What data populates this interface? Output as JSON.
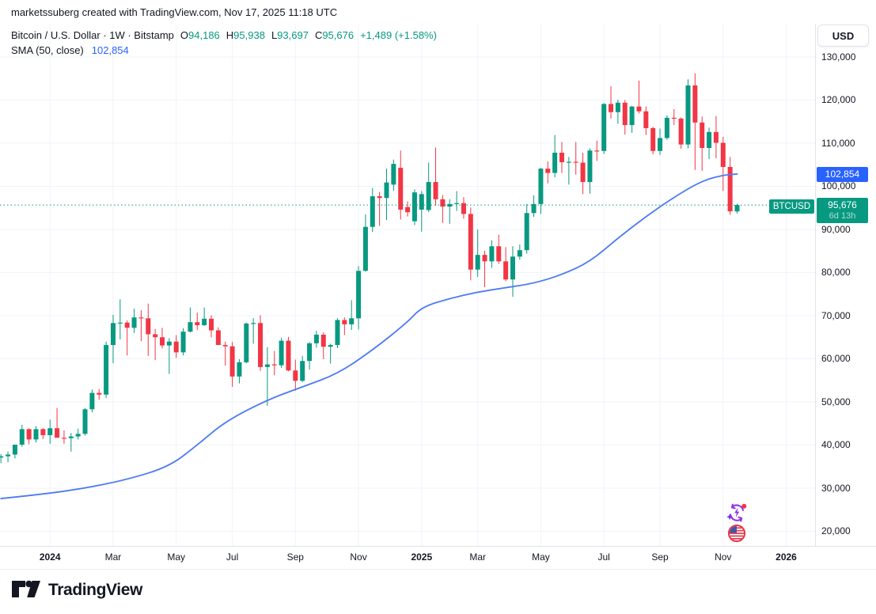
{
  "attribution": "marketssuberg created with TradingView.com, Nov 17, 2025 11:18 UTC",
  "legend": {
    "symbol_text": "Bitcoin / U.S. Dollar · 1W · Bitstamp",
    "o_label": "O",
    "o_value": "94,186",
    "h_label": "H",
    "h_value": "95,938",
    "l_label": "L",
    "l_value": "93,697",
    "c_label": "C",
    "c_value": "95,676",
    "change_text": "+1,489 (+1.58%)",
    "sma_label": "SMA (50, close)",
    "sma_value": "102,854"
  },
  "price_scale": {
    "currency_button": "USD",
    "sma_badge_text": "102,854",
    "price_badge_value": "95,676",
    "price_badge_countdown": "6d 13h",
    "symbol_badge_text": "BTCUSD"
  },
  "footer": {
    "logo_text": "TradingView"
  },
  "markers": {
    "items": [
      "economic-events-icon",
      "us-flag-event-icon"
    ]
  },
  "colors": {
    "up": "#089981",
    "down": "#f23645",
    "sma_line": "#4c7af2",
    "sma_value_text": "#2962ff",
    "badge_blue": "#2962ff",
    "badge_teal": "#089981",
    "grid": "#f0f3fa",
    "axis_border": "#e0e3eb",
    "text": "#131722",
    "current_price_line": "#089981"
  },
  "chart_data": {
    "type": "candlestick",
    "title": "Bitcoin / U.S. Dollar, 1W, Bitstamp",
    "ylabel": "USD",
    "ylim": [
      15000,
      133000
    ],
    "grid": true,
    "current_price": 95676,
    "sma_last": 102854,
    "y_ticks": [
      {
        "value": 130000,
        "label": "130,000"
      },
      {
        "value": 120000,
        "label": "120,000"
      },
      {
        "value": 110000,
        "label": "110,000"
      },
      {
        "value": 100000,
        "label": "100,000"
      },
      {
        "value": 90000,
        "label": "90,000"
      },
      {
        "value": 80000,
        "label": "80,000"
      },
      {
        "value": 70000,
        "label": "70,000"
      },
      {
        "value": 60000,
        "label": "60,000"
      },
      {
        "value": 50000,
        "label": "50,000"
      },
      {
        "value": 40000,
        "label": "40,000"
      },
      {
        "value": 30000,
        "label": "30,000"
      },
      {
        "value": 20000,
        "label": "20,000"
      }
    ],
    "x_ticks": [
      {
        "week": 7,
        "label": "2024",
        "bold": true
      },
      {
        "week": 16,
        "label": "Mar"
      },
      {
        "week": 25,
        "label": "May"
      },
      {
        "week": 33,
        "label": "Jul"
      },
      {
        "week": 42,
        "label": "Sep"
      },
      {
        "week": 51,
        "label": "Nov"
      },
      {
        "week": 60,
        "label": "2025",
        "bold": true
      },
      {
        "week": 68,
        "label": "Mar"
      },
      {
        "week": 77,
        "label": "May"
      },
      {
        "week": 86,
        "label": "Jul"
      },
      {
        "week": 94,
        "label": "Sep"
      },
      {
        "week": 103,
        "label": "Nov"
      },
      {
        "week": 112,
        "label": "2026",
        "bold": true
      }
    ],
    "weeks": [
      [
        "2023-11-13",
        37100,
        37900,
        35800,
        37400
      ],
      [
        "2023-11-20",
        37400,
        38500,
        36000,
        37800
      ],
      [
        "2023-11-27",
        37800,
        39700,
        36900,
        40100
      ],
      [
        "2023-12-04",
        40100,
        44700,
        39600,
        43700
      ],
      [
        "2023-12-11",
        43700,
        43900,
        40200,
        41300
      ],
      [
        "2023-12-18",
        41300,
        44400,
        40600,
        43700
      ],
      [
        "2023-12-25",
        43700,
        43900,
        41400,
        42300
      ],
      [
        "2024-01-01",
        42300,
        45900,
        40300,
        43900
      ],
      [
        "2024-01-08",
        43900,
        48600,
        41900,
        41700
      ],
      [
        "2024-01-15",
        41700,
        43400,
        40300,
        41600
      ],
      [
        "2024-01-22",
        41600,
        42800,
        38500,
        42000
      ],
      [
        "2024-01-29",
        42000,
        43800,
        41300,
        42600
      ],
      [
        "2024-02-05",
        42600,
        48600,
        42200,
        48300
      ],
      [
        "2024-02-12",
        48300,
        52900,
        47600,
        52100
      ],
      [
        "2024-02-19",
        52100,
        53000,
        50500,
        51700
      ],
      [
        "2024-02-26",
        51700,
        64000,
        50900,
        63200
      ],
      [
        "2024-03-04",
        63200,
        70200,
        59000,
        68300
      ],
      [
        "2024-03-11",
        68300,
        73800,
        64500,
        68400
      ],
      [
        "2024-03-18",
        68400,
        68900,
        60800,
        67200
      ],
      [
        "2024-03-25",
        67200,
        71600,
        66000,
        69600
      ],
      [
        "2024-04-01",
        69600,
        71300,
        64100,
        69400
      ],
      [
        "2024-04-08",
        69400,
        72800,
        60700,
        65700
      ],
      [
        "2024-04-15",
        65700,
        66900,
        59700,
        65000
      ],
      [
        "2024-04-22",
        65000,
        67200,
        62400,
        63100
      ],
      [
        "2024-04-29",
        63100,
        64800,
        56500,
        64000
      ],
      [
        "2024-05-06",
        64000,
        65500,
        60200,
        61500
      ],
      [
        "2024-05-13",
        61500,
        67100,
        60800,
        66300
      ],
      [
        "2024-05-20",
        66300,
        71900,
        66100,
        68500
      ],
      [
        "2024-05-27",
        68500,
        70700,
        66700,
        67800
      ],
      [
        "2024-06-03",
        67800,
        71900,
        67600,
        69300
      ],
      [
        "2024-06-10",
        69300,
        70100,
        65000,
        66600
      ],
      [
        "2024-06-17",
        66600,
        67300,
        63500,
        63200
      ],
      [
        "2024-06-24",
        63200,
        64000,
        58400,
        62900
      ],
      [
        "2024-07-01",
        62900,
        63900,
        53500,
        55900
      ],
      [
        "2024-07-08",
        55900,
        59900,
        54300,
        59200
      ],
      [
        "2024-07-15",
        59200,
        68400,
        59000,
        68200
      ],
      [
        "2024-07-22",
        68200,
        69400,
        63500,
        68300
      ],
      [
        "2024-07-29",
        68300,
        70100,
        57200,
        58100
      ],
      [
        "2024-08-05",
        58100,
        62700,
        49100,
        58700
      ],
      [
        "2024-08-12",
        58700,
        61800,
        56200,
        58500
      ],
      [
        "2024-08-19",
        58500,
        64900,
        57900,
        64200
      ],
      [
        "2024-08-26",
        64200,
        65100,
        57100,
        57300
      ],
      [
        "2024-09-02",
        57300,
        59800,
        52600,
        54900
      ],
      [
        "2024-09-09",
        54900,
        60700,
        54600,
        59500
      ],
      [
        "2024-09-16",
        59500,
        63900,
        57500,
        63600
      ],
      [
        "2024-09-23",
        63600,
        66500,
        62600,
        65600
      ],
      [
        "2024-09-30",
        65600,
        66100,
        59900,
        62800
      ],
      [
        "2024-10-07",
        62800,
        63500,
        58900,
        63200
      ],
      [
        "2024-10-14",
        63200,
        69400,
        62500,
        69000
      ],
      [
        "2024-10-21",
        69000,
        69600,
        65500,
        68000
      ],
      [
        "2024-10-28",
        68000,
        73600,
        66700,
        69400
      ],
      [
        "2024-11-04",
        69400,
        81500,
        66800,
        80400
      ],
      [
        "2024-11-11",
        80400,
        93500,
        80200,
        90600
      ],
      [
        "2024-11-18",
        90600,
        99600,
        89400,
        97700
      ],
      [
        "2024-11-25",
        97700,
        98700,
        90800,
        97300
      ],
      [
        "2024-12-02",
        97300,
        104100,
        92200,
        100900
      ],
      [
        "2024-12-09",
        100400,
        106200,
        99000,
        105200
      ],
      [
        "2024-12-16",
        104300,
        108300,
        92300,
        94600
      ],
      [
        "2024-12-23",
        95200,
        96500,
        93000,
        94000
      ],
      [
        "2024-12-30",
        91900,
        99300,
        91000,
        98600
      ],
      [
        "2025-01-06",
        94600,
        98900,
        89500,
        98200
      ],
      [
        "2025-01-13",
        94500,
        105500,
        94000,
        101000
      ],
      [
        "2025-01-20",
        101000,
        109000,
        95500,
        97000
      ],
      [
        "2025-01-27",
        97000,
        98000,
        91500,
        95300
      ],
      [
        "2025-02-03",
        95300,
        97000,
        91300,
        95900
      ],
      [
        "2025-02-10",
        95900,
        98900,
        94300,
        96100
      ],
      [
        "2025-02-17",
        96100,
        97500,
        92500,
        93600
      ],
      [
        "2025-02-24",
        93600,
        95100,
        78200,
        80700
      ],
      [
        "2025-03-03",
        80700,
        90000,
        79000,
        84100
      ],
      [
        "2025-03-10",
        84100,
        85100,
        76600,
        82600
      ],
      [
        "2025-03-17",
        82600,
        87500,
        81100,
        86100
      ],
      [
        "2025-03-24",
        86100,
        88800,
        82000,
        82600
      ],
      [
        "2025-03-31",
        82600,
        85900,
        78000,
        78400
      ],
      [
        "2025-04-07",
        78400,
        86100,
        74400,
        83700
      ],
      [
        "2025-04-14",
        83700,
        86500,
        83000,
        85200
      ],
      [
        "2025-04-21",
        85200,
        95900,
        84400,
        93800
      ],
      [
        "2025-04-28",
        93800,
        97900,
        92900,
        95900
      ],
      [
        "2025-05-05",
        95900,
        104300,
        93600,
        104100
      ],
      [
        "2025-05-12",
        104100,
        105800,
        100700,
        103100
      ],
      [
        "2025-05-19",
        103100,
        111900,
        102100,
        107800
      ],
      [
        "2025-05-26",
        107800,
        110300,
        103100,
        105600
      ],
      [
        "2025-06-02",
        105600,
        106800,
        100400,
        105700
      ],
      [
        "2025-06-09",
        105700,
        110300,
        102700,
        105500
      ],
      [
        "2025-06-16",
        105500,
        107800,
        98200,
        101000
      ],
      [
        "2025-06-23",
        101000,
        108800,
        98300,
        108300
      ],
      [
        "2025-06-30",
        108300,
        110600,
        105900,
        108200
      ],
      [
        "2025-07-07",
        108200,
        119300,
        107500,
        119100
      ],
      [
        "2025-07-14",
        119100,
        123200,
        115700,
        117200
      ],
      [
        "2025-07-21",
        117200,
        120100,
        114500,
        119400
      ],
      [
        "2025-07-28",
        119400,
        120000,
        112000,
        114200
      ],
      [
        "2025-08-04",
        114200,
        118700,
        112400,
        118500
      ],
      [
        "2025-08-11",
        118500,
        124500,
        116900,
        117400
      ],
      [
        "2025-08-18",
        117400,
        118500,
        111900,
        113500
      ],
      [
        "2025-08-25",
        113500,
        113800,
        107400,
        108200
      ],
      [
        "2025-09-01",
        108200,
        113400,
        107300,
        111200
      ],
      [
        "2025-09-08",
        111200,
        116500,
        110800,
        115900
      ],
      [
        "2025-09-15",
        115900,
        117900,
        114200,
        115700
      ],
      [
        "2025-09-22",
        115700,
        116000,
        108700,
        109700
      ],
      [
        "2025-09-29",
        109700,
        124800,
        108800,
        123400
      ],
      [
        "2025-10-06",
        123400,
        126200,
        103800,
        114800
      ],
      [
        "2025-10-13",
        114800,
        116200,
        103600,
        108900
      ],
      [
        "2025-10-20",
        108900,
        113600,
        106300,
        112600
      ],
      [
        "2025-10-27",
        112600,
        116300,
        106500,
        110100
      ],
      [
        "2025-11-03",
        110100,
        111500,
        98900,
        104500
      ],
      [
        "2025-11-10",
        104500,
        106800,
        93400,
        94200
      ],
      [
        "2025-11-17",
        94186,
        95938,
        93697,
        95676
      ]
    ],
    "sma_points": [
      [
        0,
        27600
      ],
      [
        6,
        28600
      ],
      [
        12,
        30000
      ],
      [
        18,
        32000
      ],
      [
        24,
        35000
      ],
      [
        28,
        40000
      ],
      [
        32,
        45500
      ],
      [
        38,
        50500
      ],
      [
        43,
        53500
      ],
      [
        48,
        56500
      ],
      [
        53,
        62000
      ],
      [
        58,
        68500
      ],
      [
        60,
        72000
      ],
      [
        64,
        74000
      ],
      [
        68,
        75500
      ],
      [
        72,
        76500
      ],
      [
        76,
        77500
      ],
      [
        80,
        79500
      ],
      [
        84,
        82500
      ],
      [
        88,
        88000
      ],
      [
        92,
        93000
      ],
      [
        96,
        97500
      ],
      [
        100,
        101300
      ],
      [
        103,
        102600
      ],
      [
        105,
        102854
      ]
    ]
  }
}
